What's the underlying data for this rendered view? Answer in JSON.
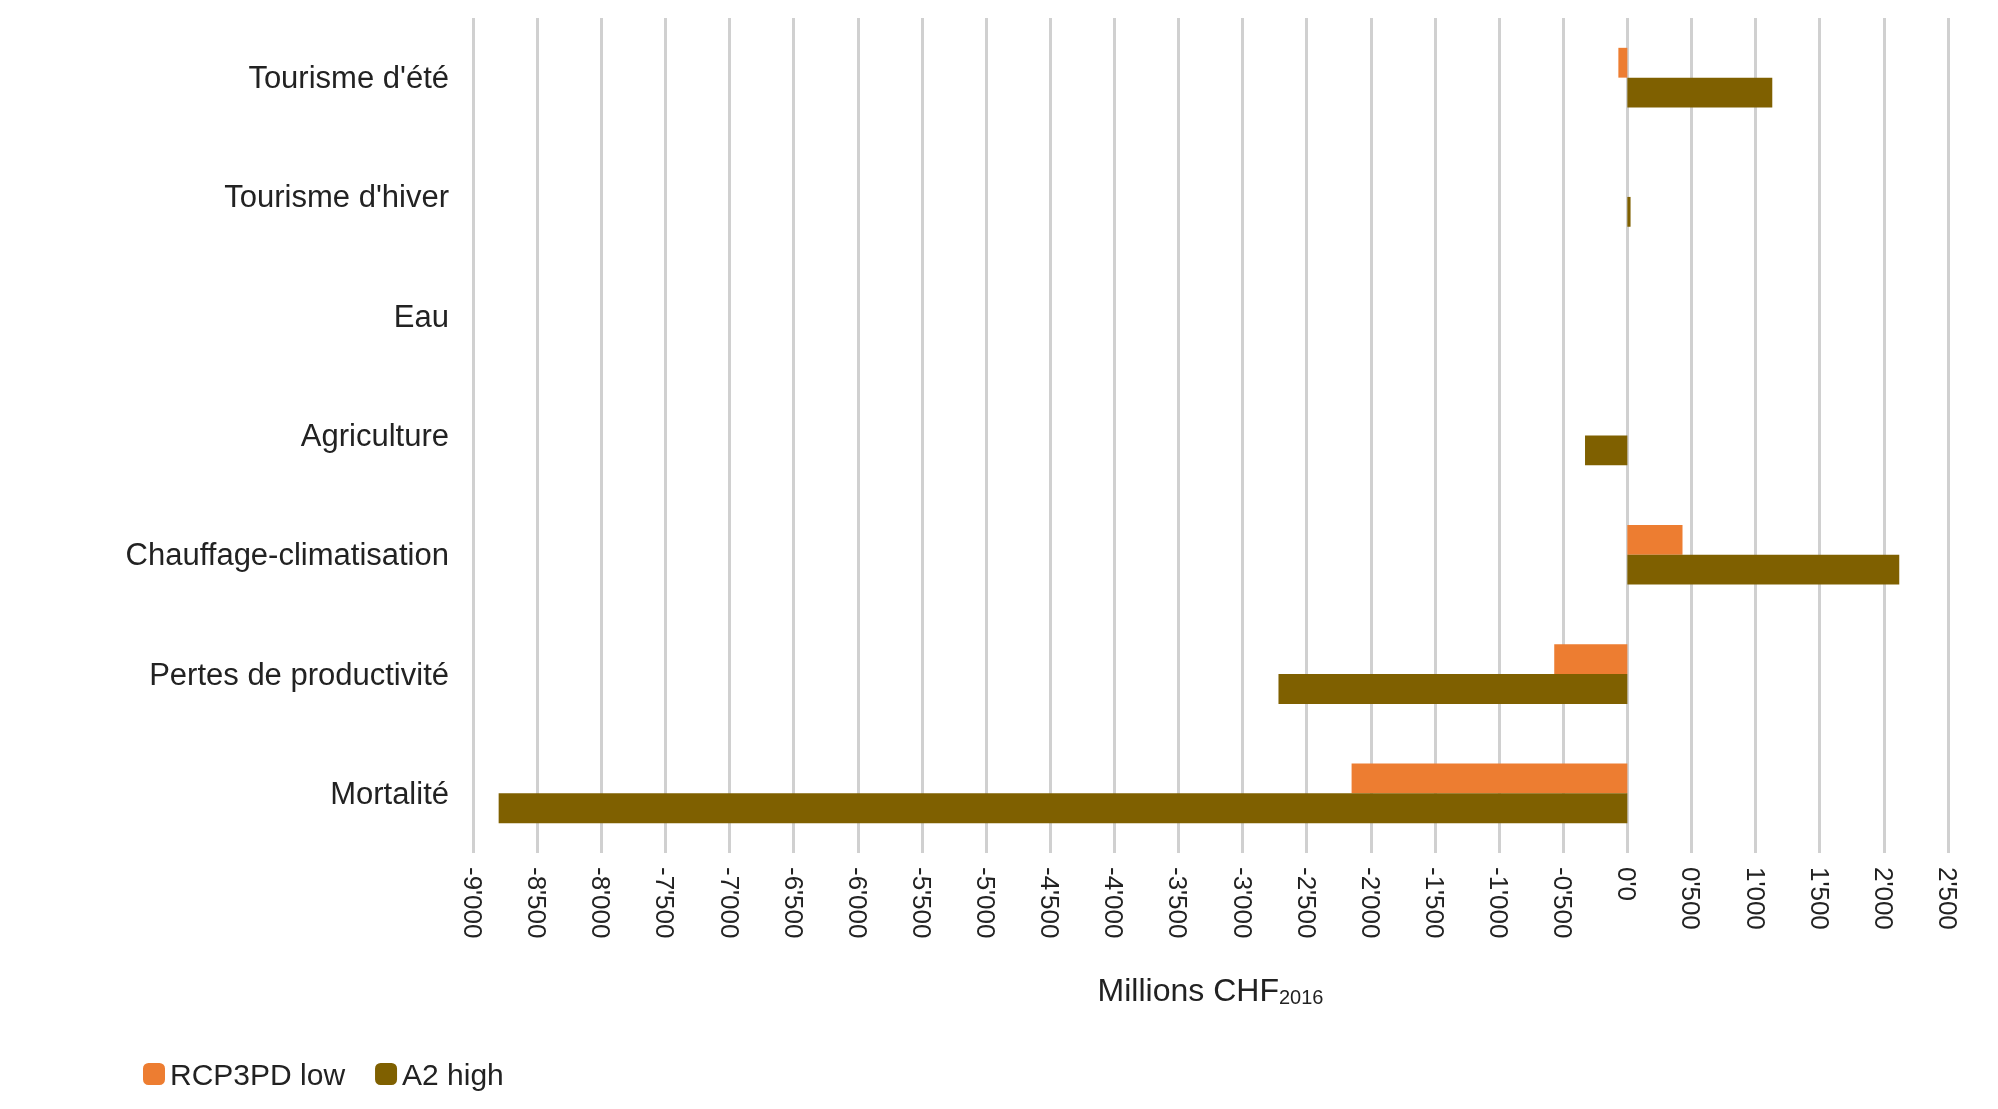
{
  "chart_data": {
    "type": "bar",
    "orientation": "horizontal",
    "xlabel": "Millions CHF$_{2016}$",
    "categories": [
      "Tourisme d'été",
      "Tourisme d'hiver",
      "Eau",
      "Agriculture",
      "Chauffage-climatisation",
      "Pertes de productivité",
      "Mortalité"
    ],
    "series": [
      {
        "name": "RCP3PD low",
        "color": "#ed7d31",
        "values": [
          -70,
          null,
          null,
          null,
          430,
          -570,
          -2150
        ]
      },
      {
        "name": "A2 high",
        "color": "#7f6000",
        "values": [
          1130,
          25,
          null,
          -330,
          2120,
          -2720,
          -8800
        ]
      }
    ],
    "xlim": [
      -9000,
      2500
    ],
    "xticks": [
      {
        "value": -9000,
        "label": "-9'000"
      },
      {
        "value": -8500,
        "label": "-8'500"
      },
      {
        "value": -8000,
        "label": "-8'000"
      },
      {
        "value": -7500,
        "label": "-7'500"
      },
      {
        "value": -7000,
        "label": "-7'000"
      },
      {
        "value": -6500,
        "label": "-6'500"
      },
      {
        "value": -6000,
        "label": "-6'000"
      },
      {
        "value": -5500,
        "label": "-5'500"
      },
      {
        "value": -5000,
        "label": "-5'000"
      },
      {
        "value": -4500,
        "label": "-4'500"
      },
      {
        "value": -4000,
        "label": "-4'000"
      },
      {
        "value": -3500,
        "label": "-3'500"
      },
      {
        "value": -3000,
        "label": "-3'000"
      },
      {
        "value": -2500,
        "label": "-2'500"
      },
      {
        "value": -2000,
        "label": "-2'000"
      },
      {
        "value": -1500,
        "label": "-1'500"
      },
      {
        "value": -1000,
        "label": "-1'000"
      },
      {
        "value": -500,
        "label": "-0'500"
      },
      {
        "value": 0,
        "label": "0'0"
      },
      {
        "value": 500,
        "label": "0'500"
      },
      {
        "value": 1000,
        "label": "1'000"
      },
      {
        "value": 1500,
        "label": "1'500"
      },
      {
        "value": 2000,
        "label": "2'000"
      },
      {
        "value": 2500,
        "label": "2'500"
      }
    ],
    "grid": "x",
    "legend": "bottom left"
  }
}
